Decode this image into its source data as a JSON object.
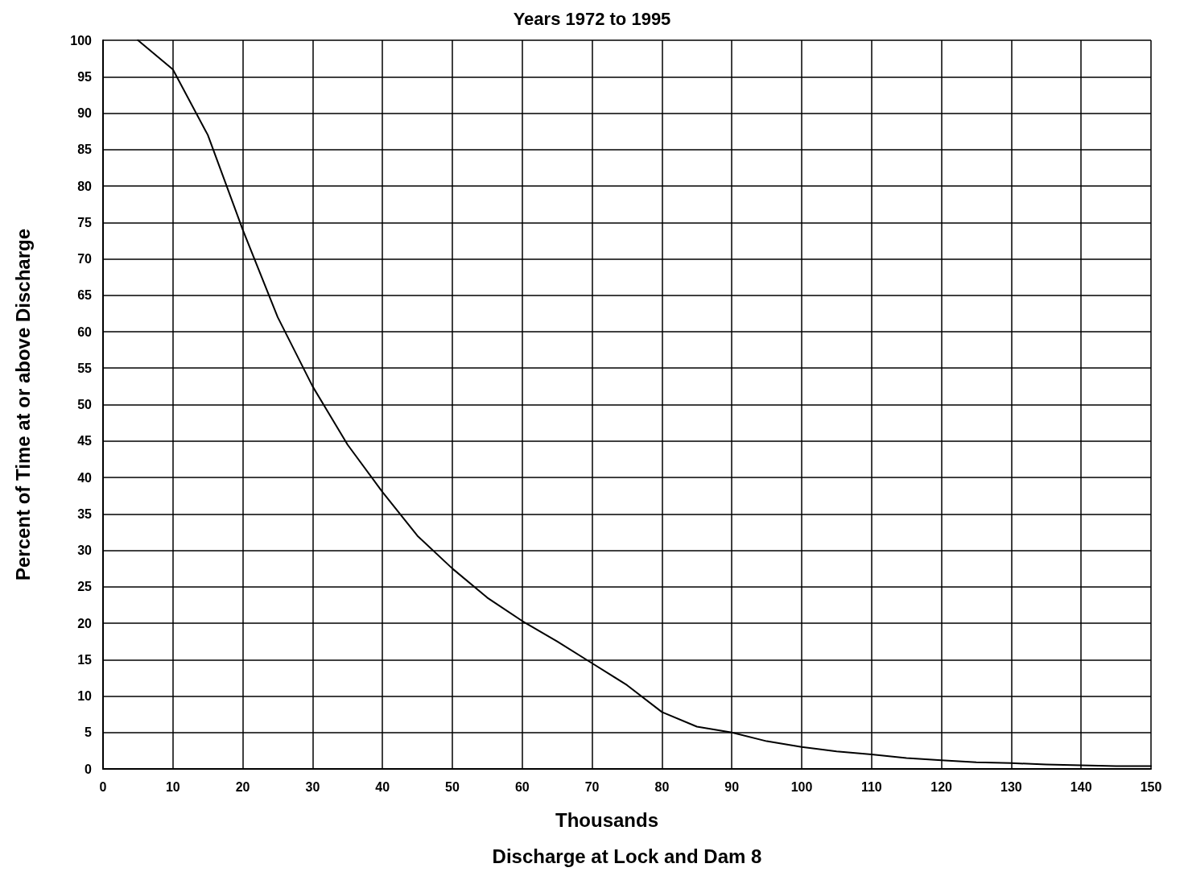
{
  "chart_data": {
    "type": "line",
    "title": "Years 1972 to 1995",
    "xlabel": "Discharge at Lock and Dam 8",
    "ylabel": "Percent of Time at or above Discharge",
    "annotations": [
      "Thousands"
    ],
    "series": [
      {
        "color": "#000000",
        "x": [
          5,
          10,
          15,
          20,
          25,
          30,
          35,
          40,
          45,
          50,
          55,
          60,
          65,
          70,
          75,
          80,
          85,
          90,
          95,
          100,
          105,
          110,
          115,
          120,
          125,
          130,
          135,
          140,
          145,
          150
        ],
        "values": [
          100,
          96,
          87,
          74,
          62,
          52.5,
          44.5,
          38,
          32,
          27.5,
          23.5,
          20.3,
          17.5,
          14.5,
          11.5,
          7.8,
          5.8,
          5,
          3.8,
          3,
          2.4,
          2,
          1.5,
          1.2,
          0.9,
          0.8,
          0.6,
          0.5,
          0.4,
          0.4
        ]
      }
    ],
    "xlim": [
      0,
      150
    ],
    "xticks": [
      0,
      10,
      20,
      30,
      40,
      50,
      60,
      70,
      80,
      90,
      100,
      110,
      120,
      130,
      140,
      150
    ],
    "ylim": [
      0,
      100
    ],
    "yticks": [
      0,
      5,
      10,
      15,
      20,
      25,
      30,
      35,
      40,
      45,
      50,
      55,
      60,
      65,
      70,
      75,
      80,
      85,
      90,
      95,
      100
    ],
    "grid": true,
    "marker": "none",
    "line_style": "solid"
  }
}
